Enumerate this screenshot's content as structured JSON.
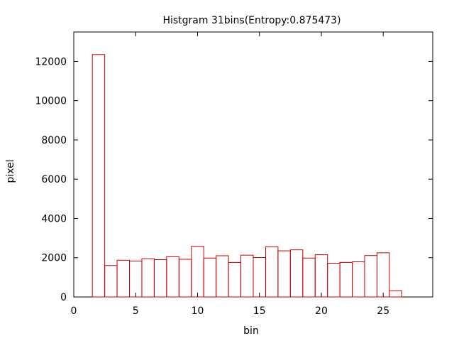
{
  "chart_data": {
    "type": "bar",
    "title": "Histgram 31bins(Entropy:0.875473)",
    "xlabel": "bin",
    "ylabel": "pixel",
    "xlim": [
      0,
      29
    ],
    "ylim": [
      0,
      13500
    ],
    "xticks": [
      0,
      5,
      10,
      15,
      20,
      25
    ],
    "yticks": [
      0,
      2000,
      4000,
      6000,
      8000,
      10000,
      12000
    ],
    "grid": false,
    "bar_color": "#cc0000",
    "bins": [
      2,
      3,
      4,
      5,
      6,
      7,
      8,
      9,
      10,
      11,
      12,
      13,
      14,
      15,
      16,
      17,
      18,
      19,
      20,
      21,
      22,
      23,
      24,
      25,
      26
    ],
    "values": [
      12350,
      1600,
      1870,
      1830,
      1950,
      1900,
      2050,
      1920,
      2580,
      1980,
      2100,
      1760,
      2130,
      2010,
      2550,
      2350,
      2400,
      1980,
      2150,
      1720,
      1760,
      1790,
      2110,
      2250,
      320
    ]
  }
}
